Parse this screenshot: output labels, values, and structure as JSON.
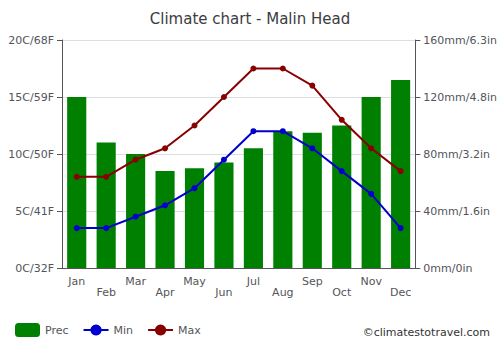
{
  "chart_data": {
    "type": "bar",
    "title": "Climate chart - Malin Head",
    "categories": [
      "Jan",
      "Feb",
      "Mar",
      "Apr",
      "May",
      "Jun",
      "Jul",
      "Aug",
      "Sep",
      "Oct",
      "Nov",
      "Dec"
    ],
    "series": [
      {
        "name": "Prec",
        "type": "bar",
        "axis": "y2",
        "color": "#008000",
        "values": [
          120,
          88,
          80,
          68,
          70,
          74,
          84,
          96,
          95,
          100,
          120,
          132
        ]
      },
      {
        "name": "Min",
        "type": "line",
        "marker": "circle",
        "color": "#0000cc",
        "values": [
          3.5,
          3.5,
          4.5,
          5.5,
          7.0,
          9.5,
          12.0,
          12.0,
          10.5,
          8.5,
          6.5,
          3.5
        ]
      },
      {
        "name": "Max",
        "type": "line",
        "marker": "circle",
        "color": "#880000",
        "values": [
          8.0,
          8.0,
          9.5,
          10.5,
          12.5,
          15.0,
          17.5,
          17.5,
          16.0,
          13.0,
          10.5,
          8.5
        ]
      }
    ],
    "ylim": [
      0,
      20
    ],
    "yticks": [
      {
        "value": 0,
        "label": "0C/32F"
      },
      {
        "value": 5,
        "label": "5C/41F"
      },
      {
        "value": 10,
        "label": "10C/50F"
      },
      {
        "value": 15,
        "label": "15C/59F"
      },
      {
        "value": 20,
        "label": "20C/68F"
      }
    ],
    "y2lim": [
      0,
      160
    ],
    "y2ticks": [
      {
        "value": 0,
        "label": "0mm/0in"
      },
      {
        "value": 40,
        "label": "40mm/1.6in"
      },
      {
        "value": 80,
        "label": "80mm/3.2in"
      },
      {
        "value": 120,
        "label": "120mm/4.8in"
      },
      {
        "value": 160,
        "label": "160mm/6.3in"
      }
    ],
    "grid": true,
    "legend": "lower left",
    "annotations": [
      "©climatestotravel.com"
    ]
  }
}
